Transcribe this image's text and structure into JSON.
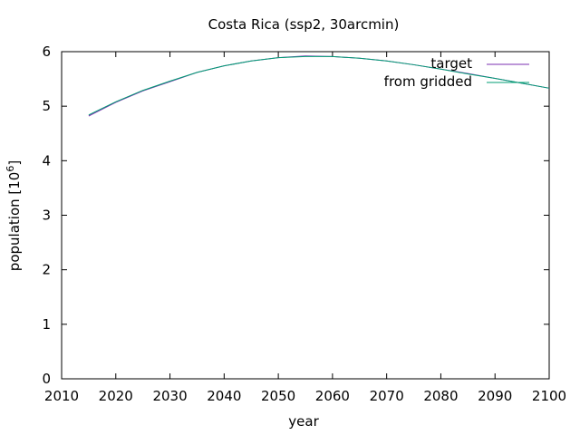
{
  "chart_data": {
    "type": "line",
    "title": "Costa Rica (ssp2, 30arcmin)",
    "xlabel": "year",
    "ylabel_main": "population [10",
    "ylabel_exp": "6",
    "ylabel_close": "]",
    "xlim": [
      2010,
      2100
    ],
    "ylim": [
      0,
      6
    ],
    "xticks": [
      2010,
      2020,
      2030,
      2040,
      2050,
      2060,
      2070,
      2080,
      2090,
      2100
    ],
    "yticks": [
      0,
      1,
      2,
      3,
      4,
      5,
      6
    ],
    "grid": false,
    "legend_position": "top-right",
    "series": [
      {
        "name": "target",
        "color": "#7b2fb0",
        "x": [
          2015,
          2020,
          2025,
          2030,
          2035,
          2040,
          2045,
          2050,
          2055,
          2060,
          2065,
          2070,
          2075,
          2080,
          2085,
          2090,
          2095,
          2100
        ],
        "y": [
          4.82,
          5.07,
          5.28,
          5.45,
          5.62,
          5.74,
          5.83,
          5.89,
          5.92,
          5.91,
          5.88,
          5.83,
          5.76,
          5.68,
          5.6,
          5.51,
          5.42,
          5.33
        ]
      },
      {
        "name": "from gridded",
        "color": "#009e73",
        "x": [
          2015,
          2020,
          2025,
          2030,
          2035,
          2040,
          2045,
          2050,
          2055,
          2060,
          2065,
          2070,
          2075,
          2080,
          2085,
          2090,
          2095,
          2100
        ],
        "y": [
          4.84,
          5.08,
          5.29,
          5.46,
          5.62,
          5.74,
          5.83,
          5.89,
          5.91,
          5.91,
          5.88,
          5.83,
          5.76,
          5.68,
          5.59,
          5.51,
          5.42,
          5.33
        ]
      }
    ]
  }
}
